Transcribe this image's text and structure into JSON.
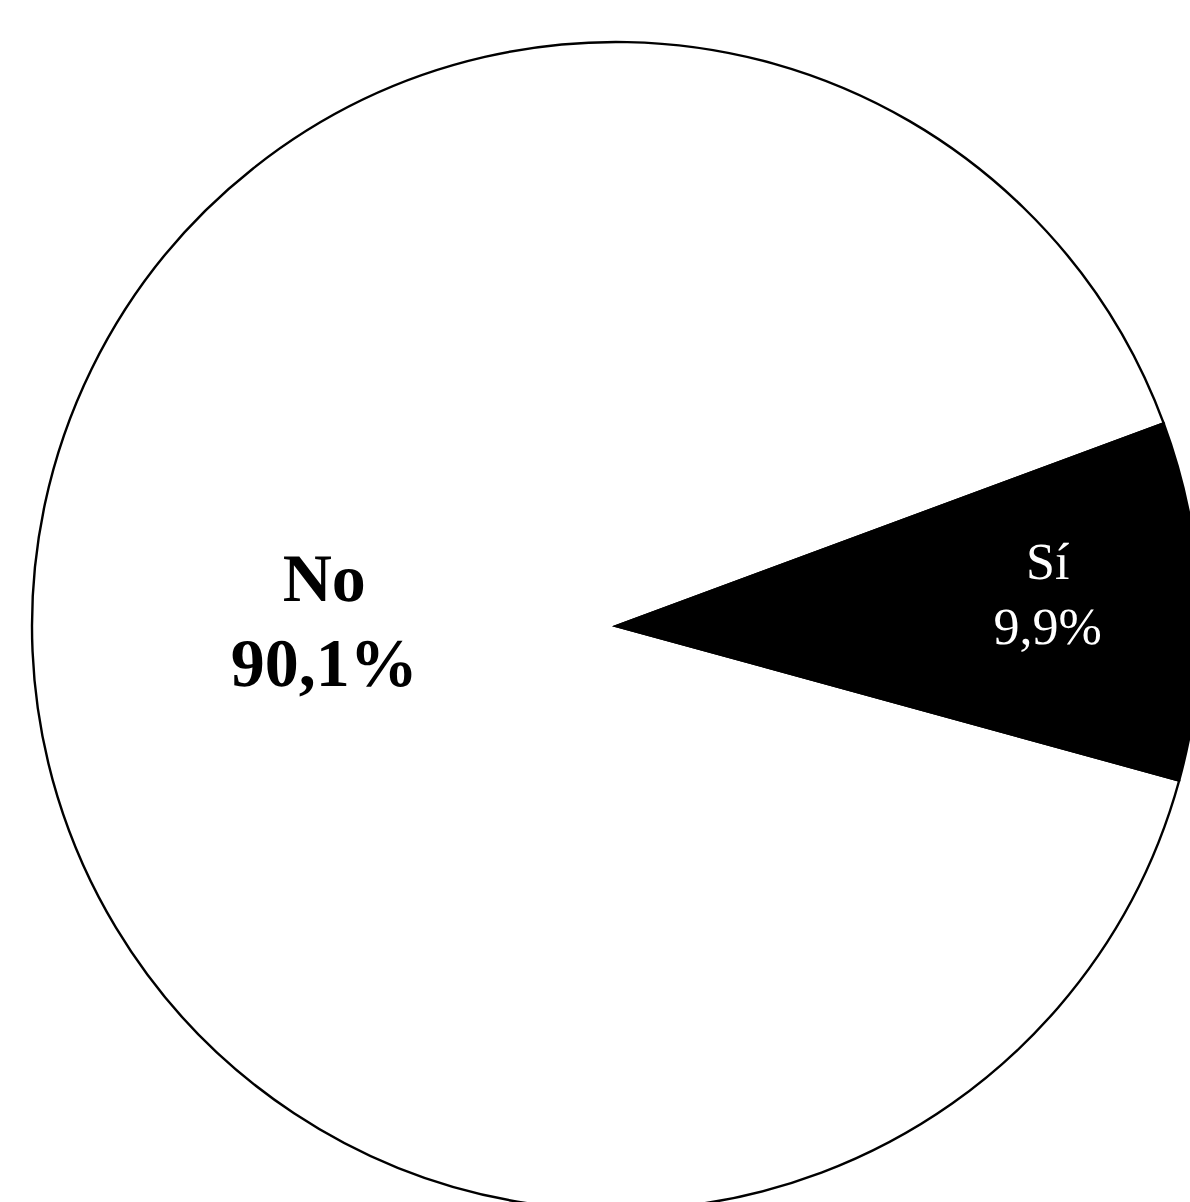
{
  "chart_data": {
    "type": "pie",
    "categories": [
      "No",
      "Sí"
    ],
    "values": [
      90.1,
      9.9
    ],
    "colors": [
      "#ffffff",
      "#000000"
    ],
    "value_labels": [
      "90,1%",
      "9,9%"
    ]
  }
}
